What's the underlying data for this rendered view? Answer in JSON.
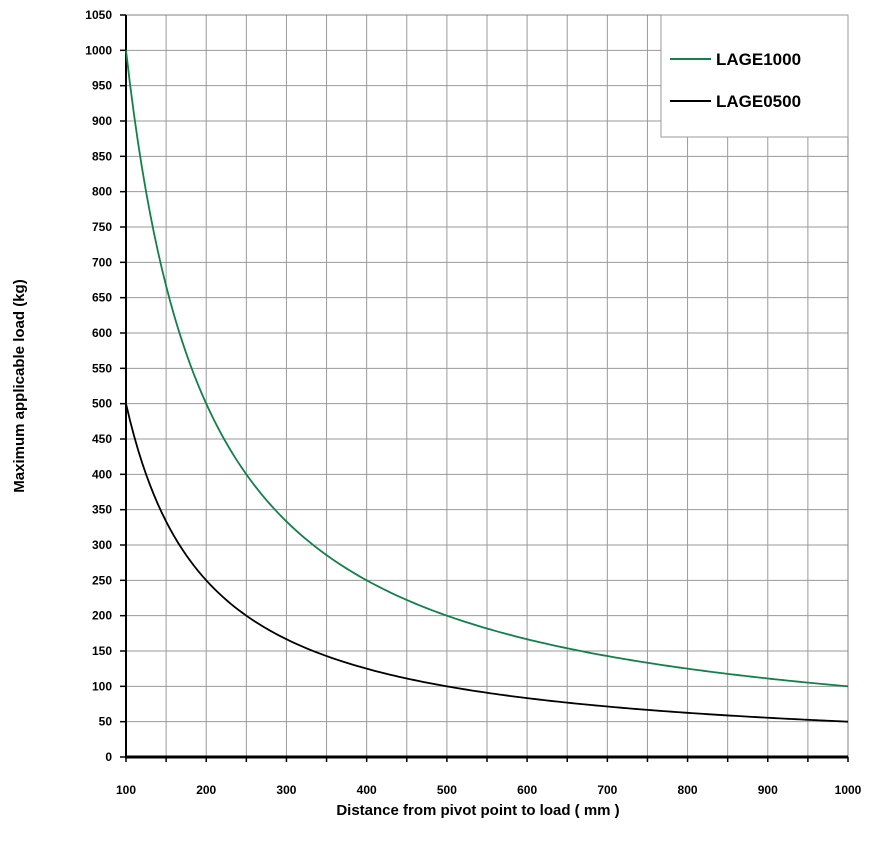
{
  "chart_data": {
    "type": "line",
    "xlabel": "Distance from pivot point to load ( mm )",
    "ylabel": "Maximum applicable load (kg)",
    "xlim": [
      100,
      1000
    ],
    "ylim": [
      0,
      1050
    ],
    "x_ticks": [
      100,
      200,
      300,
      400,
      500,
      600,
      700,
      800,
      900,
      1000
    ],
    "y_ticks": [
      0,
      50,
      100,
      150,
      200,
      250,
      300,
      350,
      400,
      450,
      500,
      550,
      600,
      650,
      700,
      750,
      800,
      850,
      900,
      950,
      1000,
      1050
    ],
    "grid": true,
    "legend_position": "top-right",
    "x": [
      100,
      150,
      200,
      250,
      300,
      350,
      400,
      450,
      500,
      550,
      600,
      650,
      700,
      750,
      800,
      850,
      900,
      950,
      1000
    ],
    "series": [
      {
        "name": "LAGE1000",
        "color": "#13804a",
        "values": [
          1000,
          667,
          500,
          400,
          333,
          286,
          250,
          222,
          200,
          182,
          167,
          154,
          143,
          133,
          125,
          118,
          111,
          105,
          100
        ]
      },
      {
        "name": "LAGE0500",
        "color": "#000000",
        "values": [
          500,
          333,
          250,
          200,
          167,
          143,
          125,
          111,
          100,
          91,
          83,
          77,
          71,
          67,
          63,
          59,
          56,
          53,
          50
        ]
      }
    ]
  }
}
